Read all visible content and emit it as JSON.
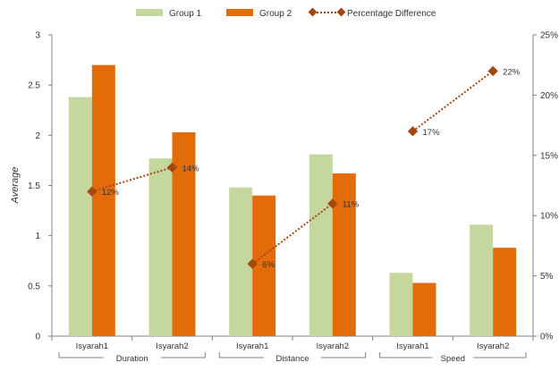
{
  "chart_data": {
    "type": "bar",
    "ylabel": "Average",
    "ylim": [
      0,
      3
    ],
    "yticks": [
      "0",
      "0.5",
      "1",
      "1.5",
      "2",
      "2.5",
      "3"
    ],
    "y2lim": [
      0,
      25
    ],
    "y2ticks": [
      "0%",
      "5%",
      "10%",
      "15%",
      "20%",
      "25%"
    ],
    "categories": [
      "Isyarah1",
      "Isyarah2",
      "Isyarah1",
      "Isyarah2",
      "Isyarah1",
      "Isyarah2"
    ],
    "groups": [
      {
        "label": "Duration",
        "span": [
          0,
          1
        ]
      },
      {
        "label": "Distance",
        "span": [
          2,
          3
        ]
      },
      {
        "label": "Speed",
        "span": [
          4,
          5
        ]
      }
    ],
    "series": [
      {
        "name": "Group 1",
        "type": "bar",
        "color": "#c4d89e",
        "values": [
          2.38,
          1.77,
          1.48,
          1.81,
          0.63,
          1.11
        ]
      },
      {
        "name": "Group 2",
        "type": "bar",
        "color": "#e36c0a",
        "values": [
          2.7,
          2.03,
          1.4,
          1.62,
          0.53,
          0.88
        ]
      },
      {
        "name": "Percentage Difference",
        "type": "line",
        "axis": "secondary",
        "color": "#a5470e",
        "values": [
          12,
          14,
          6,
          11,
          17,
          22
        ],
        "labels": [
          "12%",
          "14%",
          "6%",
          "11%",
          "17%",
          "22%"
        ],
        "segments": [
          [
            0,
            1
          ],
          [
            2,
            3
          ],
          [
            4,
            5
          ]
        ]
      }
    ],
    "legend": "top",
    "grid": false
  }
}
